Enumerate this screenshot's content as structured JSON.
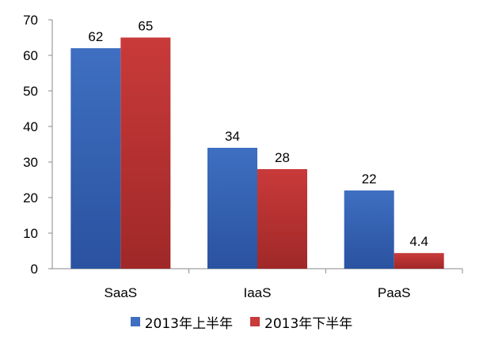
{
  "chart_data": {
    "type": "bar",
    "categories": [
      "SaaS",
      "IaaS",
      "PaaS"
    ],
    "series": [
      {
        "name": "2013年上半年",
        "values": [
          62,
          34,
          22
        ],
        "color": "#3F6FC1",
        "color_dark": "#2A52A0",
        "value_labels": [
          "62",
          "34",
          "22"
        ]
      },
      {
        "name": "2013年下半年",
        "values": [
          65,
          28,
          4.4
        ],
        "color": "#C93A3A",
        "color_dark": "#A02828",
        "value_labels": [
          "65",
          "28",
          "4.4"
        ]
      }
    ],
    "ylim": [
      0,
      70
    ],
    "yticks": [
      0,
      10,
      20,
      30,
      40,
      50,
      60,
      70
    ],
    "grid": false,
    "legend_position": "bottom",
    "title": "",
    "xlabel": "",
    "ylabel": ""
  }
}
